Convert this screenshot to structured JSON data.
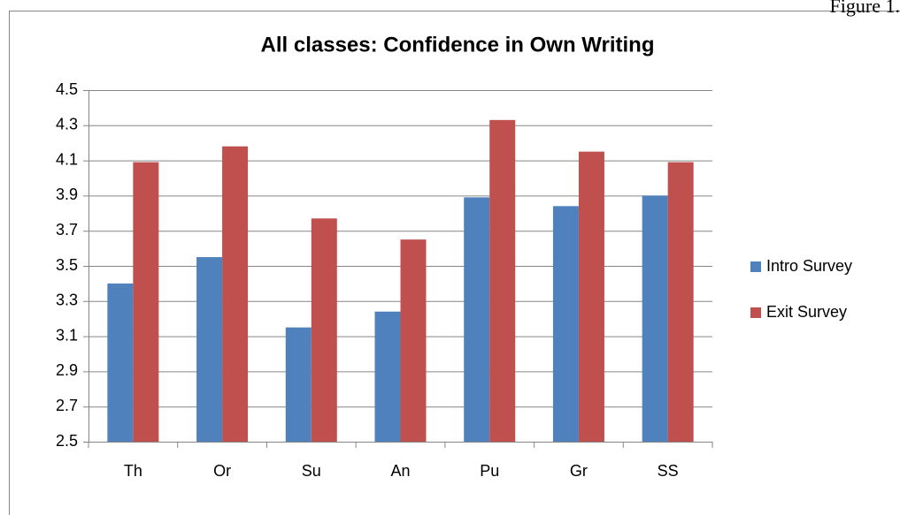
{
  "figure_label": "Figure 1.",
  "chart_data": {
    "type": "bar",
    "title": "All classes: Confidence in Own Writing",
    "categories": [
      "Th",
      "Or",
      "Su",
      "An",
      "Pu",
      "Gr",
      "SS"
    ],
    "series": [
      {
        "name": "Intro Survey",
        "color": "#4f81bd",
        "values": [
          3.4,
          3.55,
          3.15,
          3.24,
          3.89,
          3.84,
          3.9
        ]
      },
      {
        "name": "Exit Survey",
        "color": "#c0504d",
        "values": [
          4.09,
          4.18,
          3.77,
          3.65,
          4.33,
          4.15,
          4.09
        ]
      }
    ],
    "ylim": [
      2.5,
      4.5
    ],
    "yticks": [
      2.5,
      2.7,
      2.9,
      3.1,
      3.3,
      3.5,
      3.7,
      3.9,
      4.1,
      4.3,
      4.5
    ],
    "grid": true,
    "legend": "right"
  }
}
